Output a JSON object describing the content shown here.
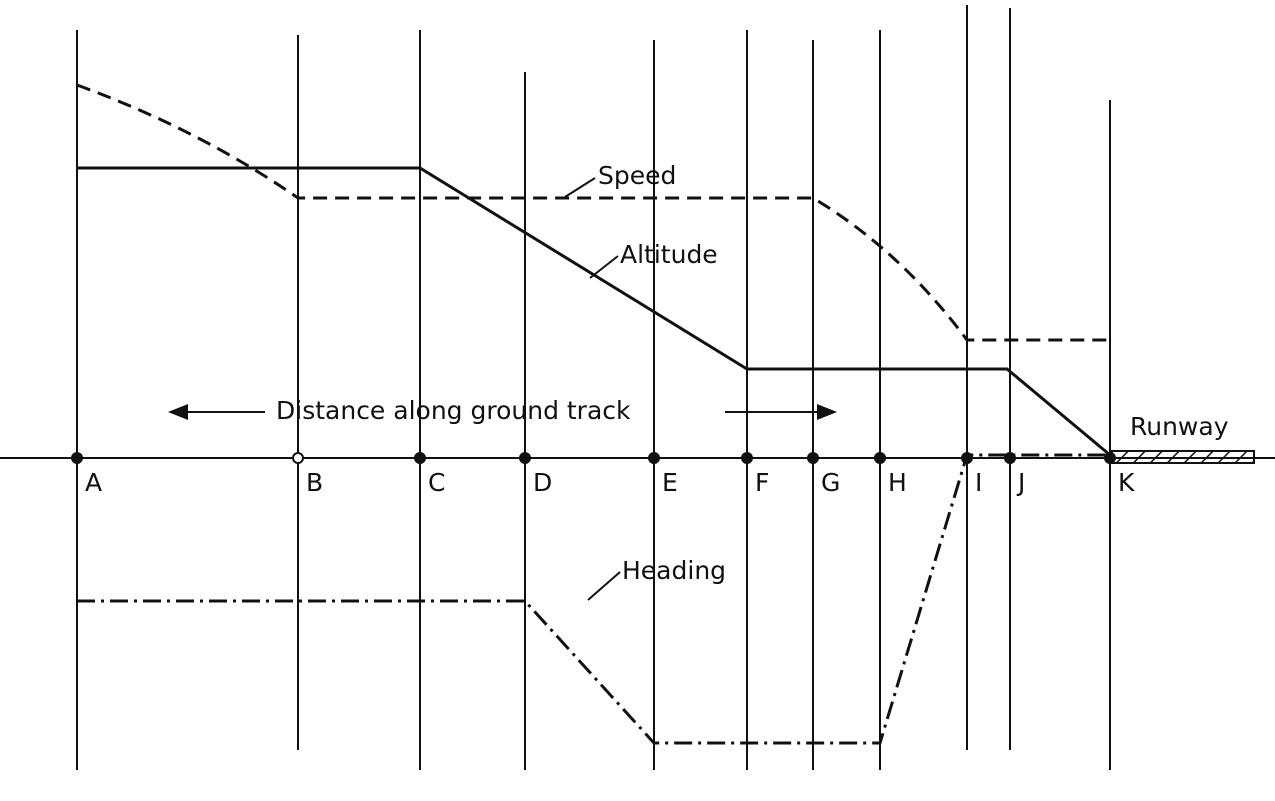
{
  "points": [
    "A",
    "B",
    "C",
    "D",
    "E",
    "F",
    "G",
    "H",
    "I",
    "J",
    "K"
  ],
  "curves": {
    "speed": "Speed",
    "altitude": "Altitude",
    "heading": "Heading"
  },
  "axis_label": "Distance along ground track",
  "runway": "Runway"
}
